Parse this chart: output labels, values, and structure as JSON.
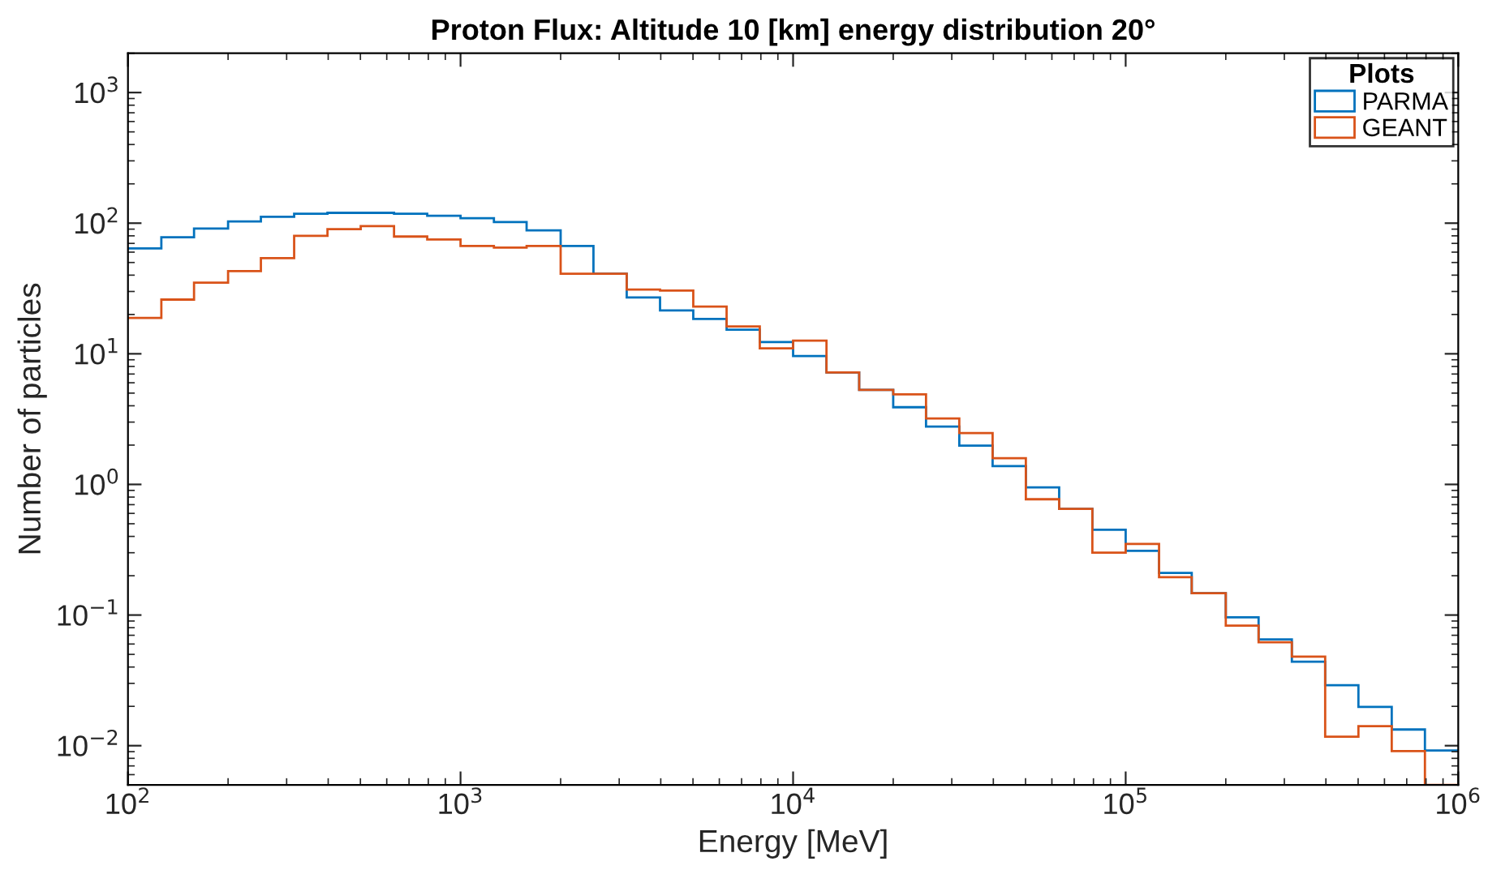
{
  "chart_data": {
    "type": "histogram",
    "title": "Proton Flux: Altitude 10 [km] energy distribution 20°",
    "xlabel": "Energy [MeV]",
    "ylabel": "Number of particles",
    "legend_title": "Plots",
    "legend": "top right",
    "log": "xy",
    "grid": false,
    "bins": [
      100,
      126,
      158,
      200,
      251,
      316,
      398,
      501,
      631,
      794,
      1000,
      1260,
      1580,
      2000,
      2510,
      3160,
      3980,
      5010,
      6310,
      7940,
      10000,
      12600,
      15800,
      20000,
      25100,
      31600,
      39800,
      50100,
      63100,
      79400,
      100000,
      126000,
      158000,
      200000,
      251000,
      316000,
      398000,
      501000,
      631000,
      794000,
      1000000
    ],
    "series": [
      {
        "name": "PARMA",
        "color": "#0072bd",
        "values": [
          64,
          78,
          91,
          103,
          112,
          118,
          120,
          120,
          118,
          114,
          109,
          102,
          88,
          67,
          41,
          27,
          21.5,
          18.5,
          15.3,
          12.3,
          9.6,
          7.2,
          5.3,
          3.9,
          2.77,
          1.98,
          1.38,
          0.95,
          0.65,
          0.45,
          0.31,
          0.21,
          0.147,
          0.096,
          0.065,
          0.044,
          0.029,
          0.0198,
          0.0133,
          0.0092
        ]
      },
      {
        "name": "GEANT",
        "color": "#d95319",
        "values": [
          18.8,
          26,
          35,
          43,
          54,
          80,
          90,
          95,
          79,
          75,
          67,
          65,
          67,
          41,
          41,
          31,
          30.5,
          23,
          16.2,
          11,
          12.6,
          7.2,
          5.3,
          4.9,
          3.2,
          2.47,
          1.59,
          0.77,
          0.65,
          0.3,
          0.35,
          0.195,
          0.147,
          0.083,
          0.062,
          0.048,
          0.0117,
          0.0141,
          0.0091,
          0.005
        ]
      }
    ],
    "xlim": [
      100,
      1000000
    ],
    "xticks": [
      {
        "value": 100,
        "label": "10$^{2}$"
      },
      {
        "value": 1000,
        "label": "10$^{3}$"
      },
      {
        "value": 10000,
        "label": "10$^{4}$"
      },
      {
        "value": 100000,
        "label": "10$^{5}$"
      },
      {
        "value": 1000000,
        "label": "10$^{6}$"
      }
    ],
    "ylim": [
      0.005,
      2000
    ],
    "yticks": [
      {
        "value": 0.01,
        "label": "10$^{−2}$"
      },
      {
        "value": 0.1,
        "label": "10$^{−1}$"
      },
      {
        "value": 1,
        "label": "10$^{0}$"
      },
      {
        "value": 10,
        "label": "10$^{1}$"
      },
      {
        "value": 100,
        "label": "10$^{2}$"
      },
      {
        "value": 1000,
        "label": "10$^{3}$"
      }
    ]
  }
}
